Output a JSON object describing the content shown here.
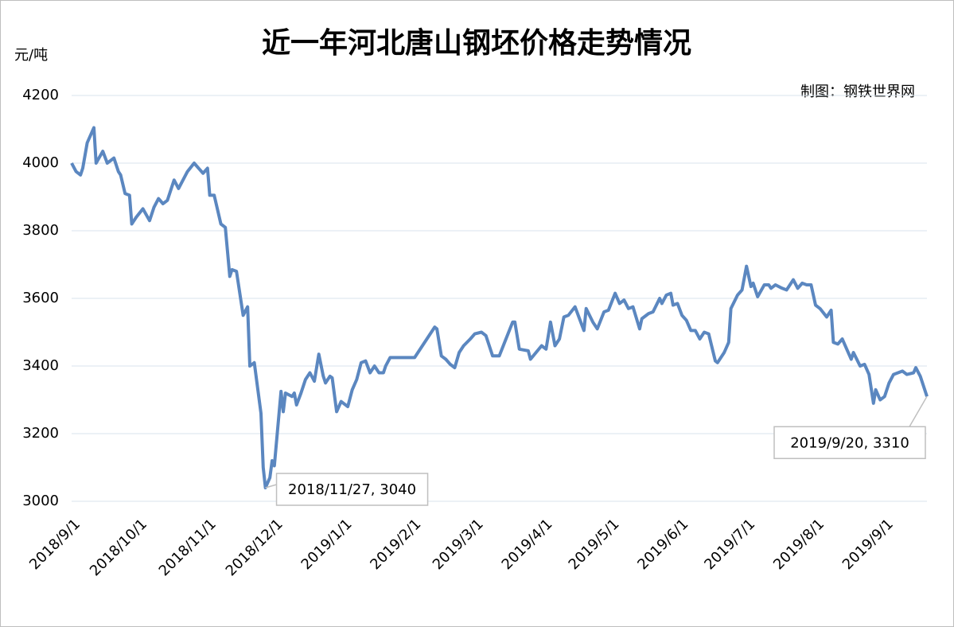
{
  "chart_data": {
    "type": "line",
    "title": "近一年河北唐山钢坯价格走势情况",
    "y_label": "元/吨",
    "source": "制图：钢铁世界网",
    "xlim": [
      "2018/9/1",
      "2019/9/20"
    ],
    "xticks": [
      "2018/9/1",
      "2018/10/1",
      "2018/11/1",
      "2018/12/1",
      "2019/1/1",
      "2019/2/1",
      "2019/3/1",
      "2019/4/1",
      "2019/5/1",
      "2019/6/1",
      "2019/7/1",
      "2019/8/1",
      "2019/9/1"
    ],
    "ylim": [
      3000,
      4200
    ],
    "yticks": [
      3000,
      3200,
      3400,
      3600,
      3800,
      4000,
      4200
    ],
    "grid": true,
    "x": [
      "2018/9/1",
      "2018/9/3",
      "2018/9/5",
      "2018/9/6",
      "2018/9/8",
      "2018/9/11",
      "2018/9/12",
      "2018/9/15",
      "2018/9/17",
      "2018/9/20",
      "2018/9/22",
      "2018/9/23",
      "2018/9/25",
      "2018/9/27",
      "2018/9/28",
      "2018/9/30",
      "2018/10/3",
      "2018/10/6",
      "2018/10/8",
      "2018/10/10",
      "2018/10/12",
      "2018/10/14",
      "2018/10/17",
      "2018/10/19",
      "2018/10/23",
      "2018/10/26",
      "2018/10/28",
      "2018/10/30",
      "2018/11/1",
      "2018/11/2",
      "2018/11/4",
      "2018/11/7",
      "2018/11/9",
      "2018/11/11",
      "2018/11/12",
      "2018/11/14",
      "2018/11/17",
      "2018/11/19",
      "2018/11/20",
      "2018/11/22",
      "2018/11/25",
      "2018/11/26",
      "2018/11/27",
      "2018/11/29",
      "2018/11/30",
      "2018/12/1",
      "2018/12/4",
      "2018/12/5",
      "2018/12/6",
      "2018/12/9",
      "2018/12/10",
      "2018/12/11",
      "2018/12/13",
      "2018/12/15",
      "2018/12/17",
      "2018/12/19",
      "2018/12/21",
      "2018/12/23",
      "2018/12/24",
      "2018/12/26",
      "2018/12/27",
      "2018/12/29",
      "2018/12/31",
      "2019/1/3",
      "2019/1/5",
      "2019/1/7",
      "2019/1/9",
      "2019/1/11",
      "2019/1/13",
      "2019/1/15",
      "2019/1/17",
      "2019/1/19",
      "2019/1/20",
      "2019/1/22",
      "2019/1/24",
      "2019/2/2",
      "2019/2/11",
      "2019/2/12",
      "2019/2/14",
      "2019/2/16",
      "2019/2/18",
      "2019/2/20",
      "2019/2/22",
      "2019/2/24",
      "2019/2/27",
      "2019/3/1",
      "2019/3/4",
      "2019/3/6",
      "2019/3/9",
      "2019/3/12",
      "2019/3/15",
      "2019/3/18",
      "2019/3/19",
      "2019/3/21",
      "2019/3/25",
      "2019/3/26",
      "2019/3/31",
      "2019/4/2",
      "2019/4/4",
      "2019/4/6",
      "2019/4/8",
      "2019/4/10",
      "2019/4/12",
      "2019/4/15",
      "2019/4/17",
      "2019/4/19",
      "2019/4/20",
      "2019/4/23",
      "2019/4/25",
      "2019/4/28",
      "2019/4/30",
      "2019/5/3",
      "2019/5/5",
      "2019/5/7",
      "2019/5/9",
      "2019/5/11",
      "2019/5/14",
      "2019/5/15",
      "2019/5/18",
      "2019/5/20",
      "2019/5/23",
      "2019/5/24",
      "2019/5/26",
      "2019/5/28",
      "2019/5/29",
      "2019/5/31",
      "2019/6/2",
      "2019/6/4",
      "2019/6/6",
      "2019/6/8",
      "2019/6/10",
      "2019/6/12",
      "2019/6/14",
      "2019/6/17",
      "2019/6/18",
      "2019/6/21",
      "2019/6/23",
      "2019/6/24",
      "2019/6/27",
      "2019/6/29",
      "2019/7/1",
      "2019/7/3",
      "2019/7/4",
      "2019/7/6",
      "2019/7/9",
      "2019/7/11",
      "2019/7/12",
      "2019/7/14",
      "2019/7/17",
      "2019/7/19",
      "2019/7/22",
      "2019/7/24",
      "2019/7/26",
      "2019/7/28",
      "2019/7/30",
      "2019/8/1",
      "2019/8/3",
      "2019/8/6",
      "2019/8/8",
      "2019/8/9",
      "2019/8/11",
      "2019/8/13",
      "2019/8/15",
      "2019/8/17",
      "2019/8/18",
      "2019/8/21",
      "2019/8/23",
      "2019/8/25",
      "2019/8/27",
      "2019/8/28",
      "2019/8/30",
      "2019/9/1",
      "2019/9/3",
      "2019/9/5",
      "2019/9/7",
      "2019/9/9",
      "2019/9/11",
      "2019/9/14",
      "2019/9/15",
      "2019/9/17",
      "2019/9/20"
    ],
    "series": [
      {
        "name": "钢坯价格",
        "color": "#5b87c0",
        "values": [
          4000,
          3975,
          3965,
          3985,
          4060,
          4105,
          4000,
          4035,
          4000,
          4015,
          3975,
          3965,
          3910,
          3905,
          3820,
          3840,
          3865,
          3830,
          3870,
          3895,
          3880,
          3890,
          3950,
          3925,
          3975,
          4000,
          3985,
          3970,
          3985,
          3905,
          3905,
          3820,
          3810,
          3665,
          3685,
          3680,
          3550,
          3575,
          3400,
          3410,
          3260,
          3100,
          3040,
          3070,
          3120,
          3105,
          3325,
          3265,
          3320,
          3310,
          3320,
          3285,
          3320,
          3360,
          3380,
          3355,
          3435,
          3370,
          3350,
          3370,
          3365,
          3265,
          3295,
          3280,
          3330,
          3360,
          3410,
          3415,
          3380,
          3400,
          3380,
          3380,
          3400,
          3425,
          3425,
          3425,
          3515,
          3510,
          3430,
          3420,
          3405,
          3395,
          3440,
          3460,
          3480,
          3495,
          3500,
          3490,
          3430,
          3430,
          3480,
          3530,
          3530,
          3450,
          3445,
          3420,
          3460,
          3450,
          3530,
          3460,
          3480,
          3545,
          3550,
          3575,
          3540,
          3505,
          3570,
          3530,
          3510,
          3560,
          3565,
          3615,
          3585,
          3595,
          3570,
          3575,
          3510,
          3540,
          3555,
          3560,
          3600,
          3585,
          3610,
          3615,
          3580,
          3585,
          3550,
          3535,
          3505,
          3505,
          3480,
          3500,
          3495,
          3415,
          3410,
          3440,
          3470,
          3570,
          3610,
          3625,
          3695,
          3635,
          3645,
          3605,
          3640,
          3640,
          3630,
          3640,
          3630,
          3625,
          3655,
          3630,
          3645,
          3640,
          3640,
          3580,
          3570,
          3545,
          3565,
          3470,
          3465,
          3480,
          3450,
          3420,
          3440,
          3400,
          3405,
          3375,
          3290,
          3330,
          3300,
          3310,
          3350,
          3375,
          3380,
          3385,
          3375,
          3380,
          3395,
          3370,
          3310
        ]
      }
    ],
    "annotations": [
      {
        "x": "2018/11/27",
        "y": 3040,
        "label": "2018/11/27, 3040"
      },
      {
        "x": "2019/9/20",
        "y": 3310,
        "label": "2019/9/20, 3310"
      }
    ]
  }
}
